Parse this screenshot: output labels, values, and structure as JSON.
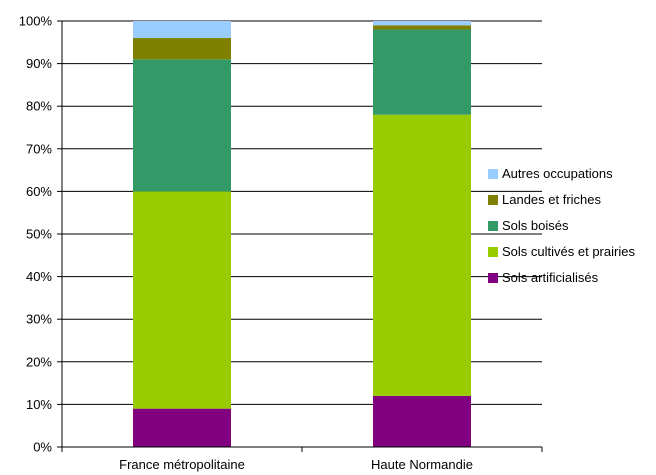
{
  "chart_data": {
    "type": "bar",
    "stacked": true,
    "categories": [
      "France métropolitaine",
      "Haute Normandie"
    ],
    "series": [
      {
        "name": "Sols artificialisés",
        "color": "#800080",
        "values": [
          9,
          12
        ]
      },
      {
        "name": "Sols cultivés et prairies",
        "color": "#99cc00",
        "values": [
          51,
          66
        ]
      },
      {
        "name": "Sols boisés",
        "color": "#339966",
        "values": [
          31,
          20
        ]
      },
      {
        "name": "Landes et friches",
        "color": "#808000",
        "values": [
          5,
          1
        ]
      },
      {
        "name": "Autres occupations",
        "color": "#99ccff",
        "values": [
          4,
          1
        ]
      }
    ],
    "ylim": [
      0,
      100
    ],
    "yticks": [
      "0%",
      "10%",
      "20%",
      "30%",
      "40%",
      "50%",
      "60%",
      "70%",
      "80%",
      "90%",
      "100%"
    ],
    "grid": true,
    "legend": "right"
  }
}
